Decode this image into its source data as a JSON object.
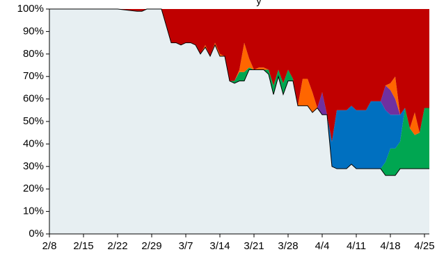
{
  "chart_data": {
    "type": "area",
    "stacked": "percent",
    "title_fragment": "y",
    "ylim": [
      0,
      100
    ],
    "y_ticks": [
      "0%",
      "10%",
      "20%",
      "30%",
      "40%",
      "50%",
      "60%",
      "70%",
      "80%",
      "90%",
      "100%"
    ],
    "x_ticks": [
      "2/8",
      "2/15",
      "2/22",
      "2/29",
      "3/7",
      "3/14",
      "3/21",
      "3/28",
      "4/4",
      "4/11",
      "4/18",
      "4/25"
    ],
    "grid": false,
    "legend": "none",
    "x": [
      "2/8",
      "2/15",
      "2/22",
      "2/26",
      "2/27",
      "2/28",
      "2/29",
      "3/2",
      "3/4",
      "3/5",
      "3/6",
      "3/7",
      "3/8",
      "3/9",
      "3/10",
      "3/11",
      "3/12",
      "3/13",
      "3/14",
      "3/15",
      "3/16",
      "3/17",
      "3/18",
      "3/19",
      "3/20",
      "3/21",
      "3/22",
      "3/23",
      "3/24",
      "3/25",
      "3/26",
      "3/27",
      "3/28",
      "3/29",
      "3/30",
      "3/31",
      "4/1",
      "4/2",
      "4/3",
      "4/4",
      "4/5",
      "4/6",
      "4/7",
      "4/8",
      "4/9",
      "4/10",
      "4/11",
      "4/12",
      "4/13",
      "4/14",
      "4/15",
      "4/16",
      "4/17",
      "4/18",
      "4/19",
      "4/20",
      "4/21",
      "4/22",
      "4/23",
      "4/24",
      "4/25",
      "4/26"
    ],
    "series": [
      {
        "color": "#e7eff2",
        "values": [
          100,
          100,
          100,
          99,
          99,
          100,
          100,
          100,
          85,
          85,
          84,
          85,
          85,
          84,
          80,
          83,
          79,
          84,
          79,
          79,
          68,
          67,
          68,
          68,
          73,
          73,
          73,
          73,
          71,
          62,
          70,
          62,
          68,
          68,
          57,
          57,
          57,
          54,
          56,
          53,
          53,
          30,
          29,
          29,
          29,
          31,
          29,
          29,
          29,
          29,
          29,
          29,
          26,
          26,
          26,
          29,
          29,
          29,
          29,
          29,
          29,
          29
        ]
      },
      {
        "color": "#00a651",
        "values": [
          0,
          0,
          0,
          0,
          0,
          0,
          0,
          0,
          0,
          0,
          0,
          0,
          0,
          0,
          0,
          0,
          0,
          0,
          0,
          0,
          0,
          1,
          4,
          4,
          1,
          0,
          0,
          0,
          2,
          4,
          3,
          5,
          5,
          1,
          0,
          0,
          0,
          0,
          0,
          0,
          0,
          0,
          0,
          0,
          0,
          0,
          0,
          0,
          0,
          0,
          0,
          0,
          6,
          12,
          12,
          12,
          27,
          18,
          15,
          16,
          27,
          27
        ]
      },
      {
        "color": "#0070c0",
        "values": [
          0,
          0,
          0,
          0,
          0,
          0,
          0,
          0,
          0,
          0,
          0,
          0,
          0,
          0,
          0,
          0,
          0,
          0,
          0,
          0,
          0,
          0,
          0,
          0,
          0,
          0,
          0,
          0,
          0,
          0,
          0,
          0,
          0,
          0,
          0,
          0,
          0,
          0,
          0,
          0,
          0,
          11,
          26,
          26,
          26,
          26,
          26,
          26,
          26,
          30,
          30,
          30,
          23,
          15,
          15,
          12,
          0,
          0,
          0,
          0,
          0,
          0
        ]
      },
      {
        "color": "#7030a0",
        "values": [
          0,
          0,
          0,
          0,
          0,
          0,
          0,
          0,
          0,
          0,
          0,
          0,
          0,
          0,
          0,
          0,
          0,
          0,
          0,
          0,
          0,
          0,
          0,
          0,
          0,
          0,
          0,
          0,
          0,
          0,
          0,
          0,
          0,
          0,
          0,
          0,
          0,
          0,
          0,
          10,
          0,
          0,
          0,
          0,
          0,
          0,
          0,
          0,
          0,
          0,
          0,
          0,
          11,
          11,
          7,
          0,
          0,
          0,
          0,
          0,
          0,
          0
        ]
      },
      {
        "color": "#ff6600",
        "values": [
          0,
          0,
          0,
          0,
          0,
          0,
          0,
          0,
          0,
          0,
          0,
          0,
          0,
          0,
          0,
          1,
          0,
          1,
          1,
          0,
          0,
          0,
          1,
          13,
          4,
          0,
          1,
          1,
          0,
          0,
          0,
          0,
          0,
          0,
          0,
          12,
          12,
          9,
          0,
          0,
          0,
          0,
          0,
          0,
          0,
          0,
          0,
          0,
          0,
          0,
          0,
          0,
          0,
          3,
          10,
          0,
          0,
          0,
          10,
          0,
          0,
          0
        ]
      },
      {
        "color": "#c00000",
        "values": [
          0,
          0,
          0,
          1,
          1,
          0,
          0,
          0,
          15,
          15,
          16,
          15,
          15,
          16,
          20,
          16,
          21,
          15,
          20,
          21,
          32,
          32,
          27,
          15,
          22,
          27,
          26,
          26,
          27,
          34,
          27,
          33,
          27,
          31,
          43,
          31,
          31,
          37,
          44,
          37,
          47,
          59,
          45,
          45,
          45,
          43,
          45,
          45,
          45,
          41,
          41,
          41,
          34,
          33,
          30,
          47,
          44,
          53,
          46,
          55,
          44,
          44
        ]
      }
    ]
  }
}
